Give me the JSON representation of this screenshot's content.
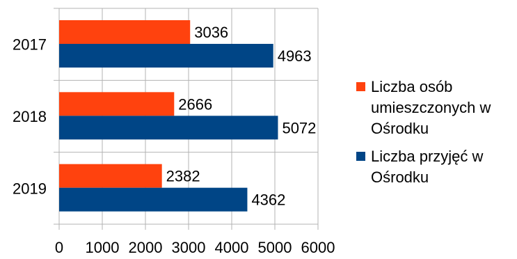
{
  "chart_data": {
    "type": "bar",
    "orientation": "horizontal",
    "categories": [
      "2017",
      "2018",
      "2019"
    ],
    "series": [
      {
        "name": "Liczba osób umieszczonych w Ośrodku",
        "legend_lines": [
          "Liczba osób",
          "umieszczonych w",
          "Ośrodku"
        ],
        "color": "#ff420e",
        "values": [
          3036,
          2666,
          2382
        ]
      },
      {
        "name": "Liczba przyjęć w Ośrodku",
        "legend_lines": [
          "Liczba przyjęć w",
          "Ośrodku"
        ],
        "color": "#004586",
        "values": [
          4963,
          5072,
          4362
        ]
      }
    ],
    "xlim": [
      0,
      6000
    ],
    "xticks": [
      "0",
      "1000",
      "2000",
      "3000",
      "4000",
      "5000",
      "6000"
    ],
    "xtick_values": [
      0,
      1000,
      2000,
      3000,
      4000,
      5000,
      6000
    ],
    "grid": true,
    "legend_position": "right",
    "data_labels": true
  }
}
